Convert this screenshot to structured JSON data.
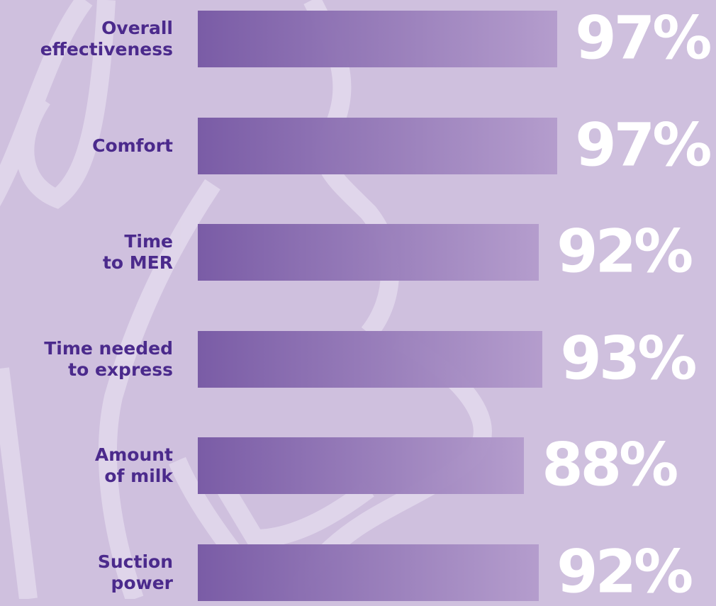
{
  "chart_data": {
    "type": "bar",
    "orientation": "horizontal",
    "categories": [
      "Overall\neffectiveness",
      "Comfort",
      "Time\nto MER",
      "Time needed\nto express",
      "Amount\nof milk",
      "Suction\npower"
    ],
    "values": [
      97,
      97,
      92,
      93,
      88,
      92
    ],
    "value_labels": [
      "97%",
      "97%",
      "92%",
      "93%",
      "88%",
      "92%"
    ],
    "color": "#7a5ca6"
  }
}
